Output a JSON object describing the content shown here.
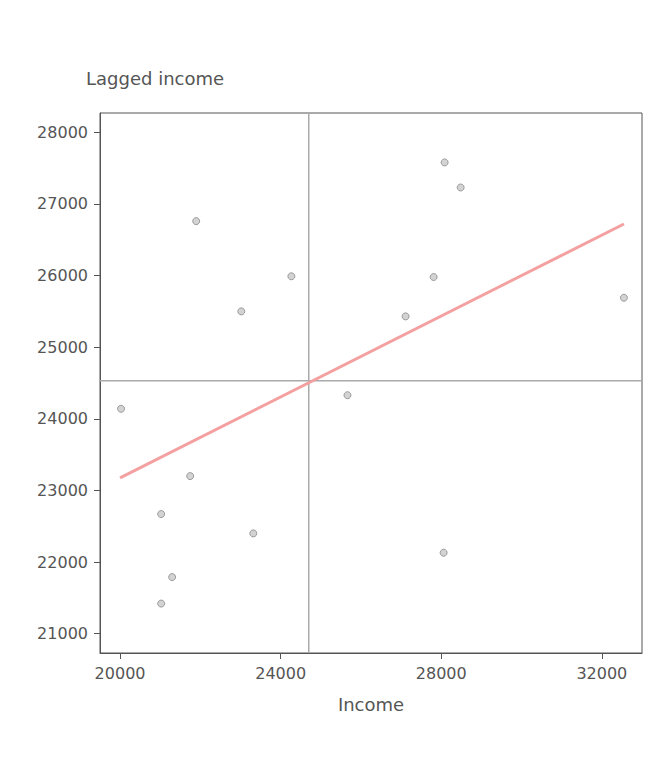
{
  "chart_data": {
    "type": "scatter",
    "x_label": "Income",
    "y_label": "Lagged income",
    "x": [
      20025,
      21896,
      23019,
      24266,
      21746,
      21023,
      23318,
      21297,
      21023,
      25664,
      27111,
      27810,
      28084,
      28483,
      28059,
      32550
    ],
    "values": [
      24140,
      26760,
      25500,
      25990,
      23200,
      22670,
      22400,
      21790,
      21420,
      24330,
      25430,
      25980,
      27580,
      27230,
      22130,
      25690
    ],
    "color": "#c8c8c8",
    "marker": "circle",
    "fit_line": {
      "x": [
        20000,
        32550
      ],
      "y": [
        23175,
        26720
      ],
      "color": "#f4a0a0"
    },
    "mean_x": 24700,
    "mean_y": 24530,
    "mean_color": "#aaaaaa",
    "xlim": [
      19500,
      33000
    ],
    "xticks": [
      20000,
      24000,
      28000,
      32000
    ],
    "ylim": [
      20730,
      28270
    ],
    "yticks": [
      21000,
      22000,
      23000,
      24000,
      25000,
      26000,
      27000,
      28000
    ],
    "grid": false
  }
}
